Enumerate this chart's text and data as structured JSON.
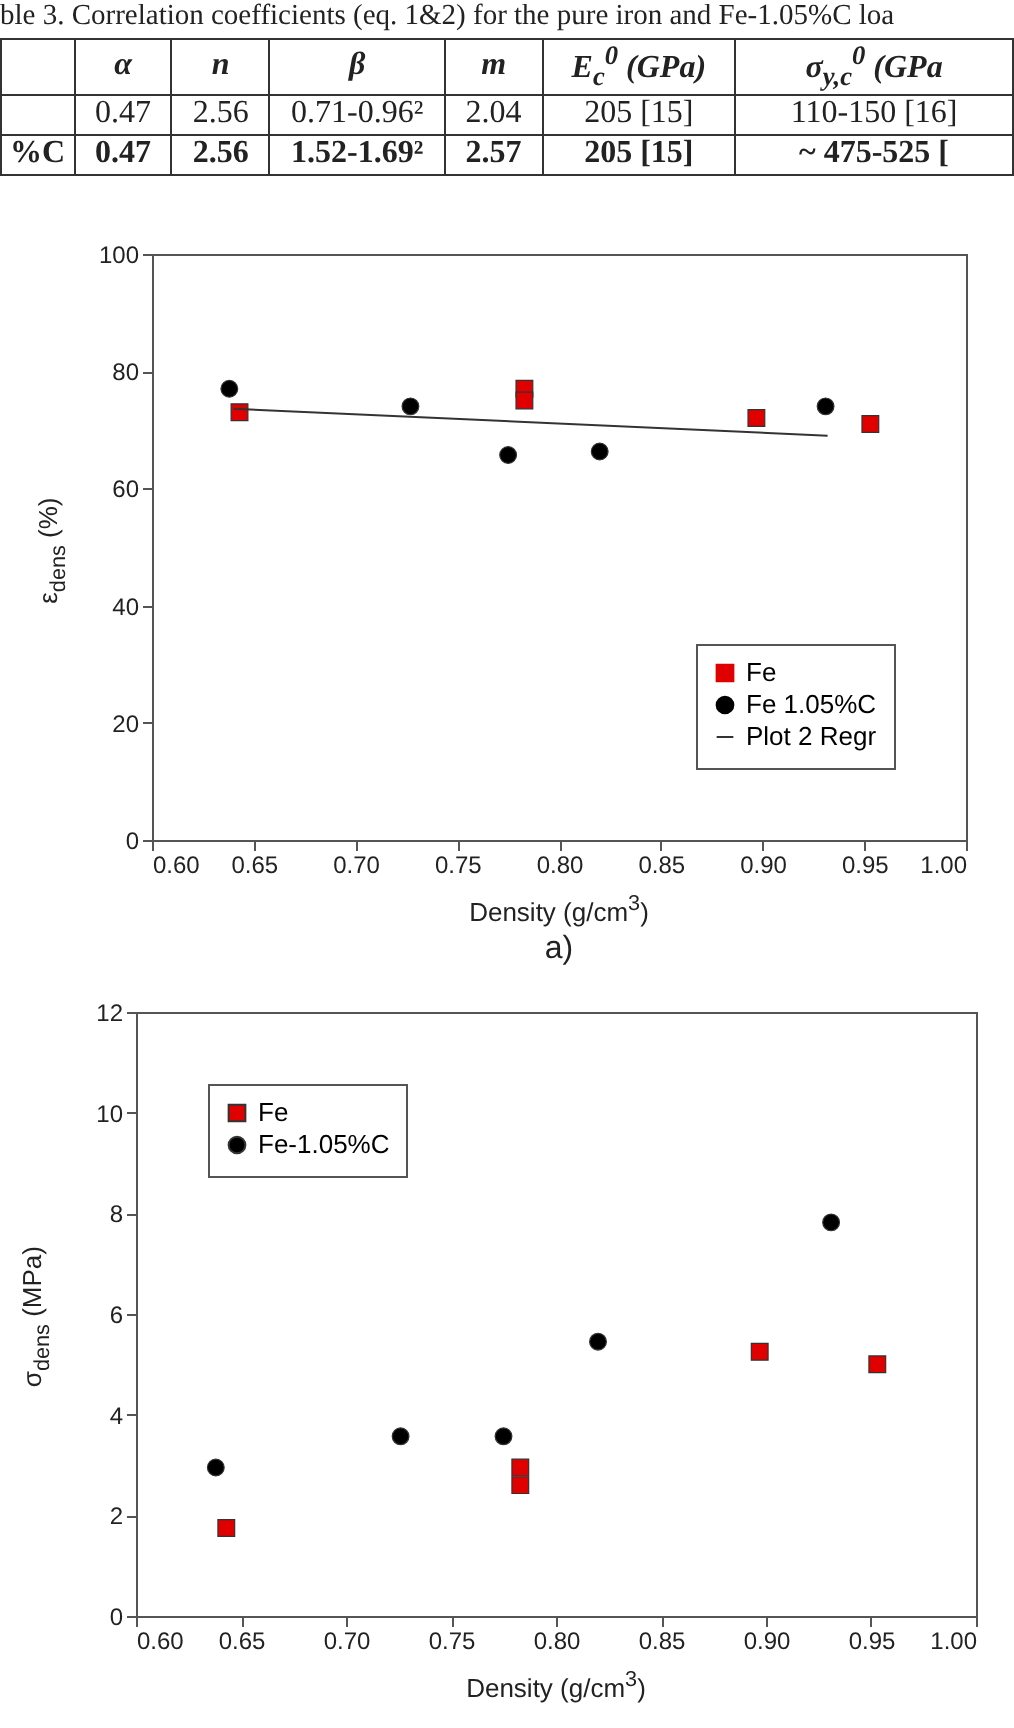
{
  "chart_data": [
    {
      "type": "other",
      "title": "ble 3. Correlation coefficients (eq. 1&2) for the pure iron and Fe-1.05%C loa",
      "categories": [
        null,
        "α",
        "n",
        "β",
        "m",
        "E$_{c}$$^{0}$ (GPa)",
        "σ$_{y,c}$$^{0}$ (GPa"
      ],
      "cell_labels": [
        [
          null,
          "0.47",
          "2.56",
          "0.71-0.96²",
          "2.04",
          "205 [15]",
          "110-150 [16]"
        ],
        [
          "%C",
          "0.47",
          "2.56",
          "1.52-1.69²",
          "2.57",
          "205 [15]",
          "~ 475-525 ["
        ]
      ]
    },
    {
      "type": "scatter",
      "xlabel": "Density (g/cm$^{3}$)",
      "ylabel": "ε$_{dens}$ (%)",
      "annotations": [
        "a)"
      ],
      "xlim": [
        0.6,
        1.0
      ],
      "xticks": [
        {
          "value": 0.6,
          "label": "0.60"
        },
        {
          "value": 0.65,
          "label": "0.65"
        },
        {
          "value": 0.7,
          "label": "0.70"
        },
        {
          "value": 0.75,
          "label": "0.75"
        },
        {
          "value": 0.8,
          "label": "0.80"
        },
        {
          "value": 0.85,
          "label": "0.85"
        },
        {
          "value": 0.9,
          "label": "0.90"
        },
        {
          "value": 0.95,
          "label": "0.95"
        },
        {
          "value": 1.0,
          "label": "1.00"
        }
      ],
      "ylim": [
        0,
        100
      ],
      "yticks": [
        0,
        20,
        40,
        60,
        80,
        100
      ],
      "legend": "bottom right",
      "series": [
        {
          "name": "Fe",
          "color": "#e00000",
          "marker": "square",
          "x": [
            0.643,
            0.783,
            0.783,
            0.897,
            0.953
          ],
          "values": [
            73,
            77,
            75,
            72,
            71
          ]
        },
        {
          "name": "Fe 1.05%C",
          "color": "#000000",
          "marker": "circle",
          "x": [
            0.638,
            0.727,
            0.775,
            0.82,
            0.931
          ],
          "values": [
            77,
            74,
            65.7,
            66.3,
            74
          ]
        },
        {
          "name": "Plot 2 Regr",
          "type": "line",
          "color": "#333333",
          "x": [
            0.64,
            0.932
          ],
          "values": [
            73.6,
            69.0
          ]
        }
      ]
    },
    {
      "type": "scatter",
      "xlabel": "Density (g/cm$^{3}$)",
      "ylabel": "σ$_{dens}$ (MPa)",
      "xlim": [
        0.6,
        1.0
      ],
      "xticks": [
        {
          "value": 0.6,
          "label": "0.60"
        },
        {
          "value": 0.65,
          "label": "0.65"
        },
        {
          "value": 0.7,
          "label": "0.70"
        },
        {
          "value": 0.75,
          "label": "0.75"
        },
        {
          "value": 0.8,
          "label": "0.80"
        },
        {
          "value": 0.85,
          "label": "0.85"
        },
        {
          "value": 0.9,
          "label": "0.90"
        },
        {
          "value": 0.95,
          "label": "0.95"
        },
        {
          "value": 1.0,
          "label": "1.00"
        }
      ],
      "ylim": [
        0,
        12
      ],
      "yticks": [
        0,
        2,
        4,
        6,
        8,
        10,
        12
      ],
      "legend": "top left",
      "series": [
        {
          "name": "Fe",
          "color": "#e00000",
          "marker": "square",
          "x": [
            0.643,
            0.783,
            0.783,
            0.897,
            0.953
          ],
          "values": [
            1.75,
            2.95,
            2.6,
            5.25,
            5.0
          ]
        },
        {
          "name": "Fe-1.05%C",
          "color": "#000000",
          "marker": "circle",
          "x": [
            0.638,
            0.726,
            0.775,
            0.82,
            0.931
          ],
          "values": [
            2.95,
            3.57,
            3.57,
            5.45,
            7.82
          ]
        }
      ]
    }
  ]
}
